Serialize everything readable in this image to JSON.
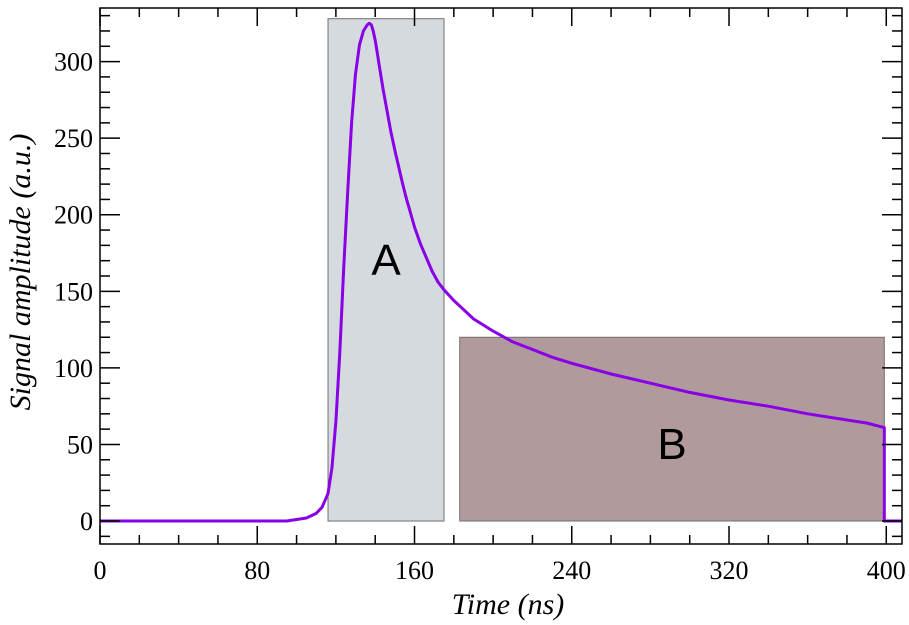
{
  "chart_data": {
    "type": "line",
    "xlabel": "Time (ns)",
    "ylabel": "Signal amplitude (a.u.)",
    "xlim": [
      0,
      408
    ],
    "ylim": [
      -15,
      335
    ],
    "x_ticks": [
      0,
      80,
      160,
      240,
      320,
      400
    ],
    "y_ticks": [
      0,
      50,
      100,
      150,
      200,
      250,
      300
    ],
    "grid": false,
    "colors": {
      "line": "#8a00e6",
      "region_a": "#d5dadf",
      "region_b": "#b09a9c"
    },
    "regions": [
      {
        "label": "A",
        "x": [
          116,
          175
        ],
        "y": [
          0,
          328
        ]
      },
      {
        "label": "B",
        "x": [
          183,
          399
        ],
        "y": [
          0,
          120
        ]
      }
    ],
    "series": [
      {
        "x": [
          0,
          95,
          100,
          105,
          110,
          113,
          116,
          118,
          120,
          122,
          124,
          126,
          128,
          130,
          132,
          134,
          136,
          137,
          138,
          139,
          140,
          141,
          142,
          144,
          146,
          148,
          150,
          152,
          154,
          156,
          158,
          160,
          163,
          166,
          169,
          172,
          175,
          180,
          185,
          190,
          200,
          210,
          220,
          230,
          240,
          260,
          280,
          300,
          320,
          340,
          360,
          380,
          390,
          396,
          399,
          399,
          408
        ],
        "y": [
          0,
          0,
          1,
          2,
          5,
          9,
          18,
          35,
          65,
          110,
          165,
          215,
          260,
          292,
          311,
          320,
          324,
          325,
          324,
          320,
          314,
          306,
          298,
          282,
          268,
          254,
          242,
          231,
          220,
          210,
          201,
          192,
          181,
          172,
          163,
          156,
          151,
          144,
          138,
          132,
          124,
          117,
          112,
          107,
          103,
          96,
          90,
          84,
          79,
          75,
          70,
          66,
          64,
          62,
          61,
          0,
          0
        ]
      }
    ]
  }
}
